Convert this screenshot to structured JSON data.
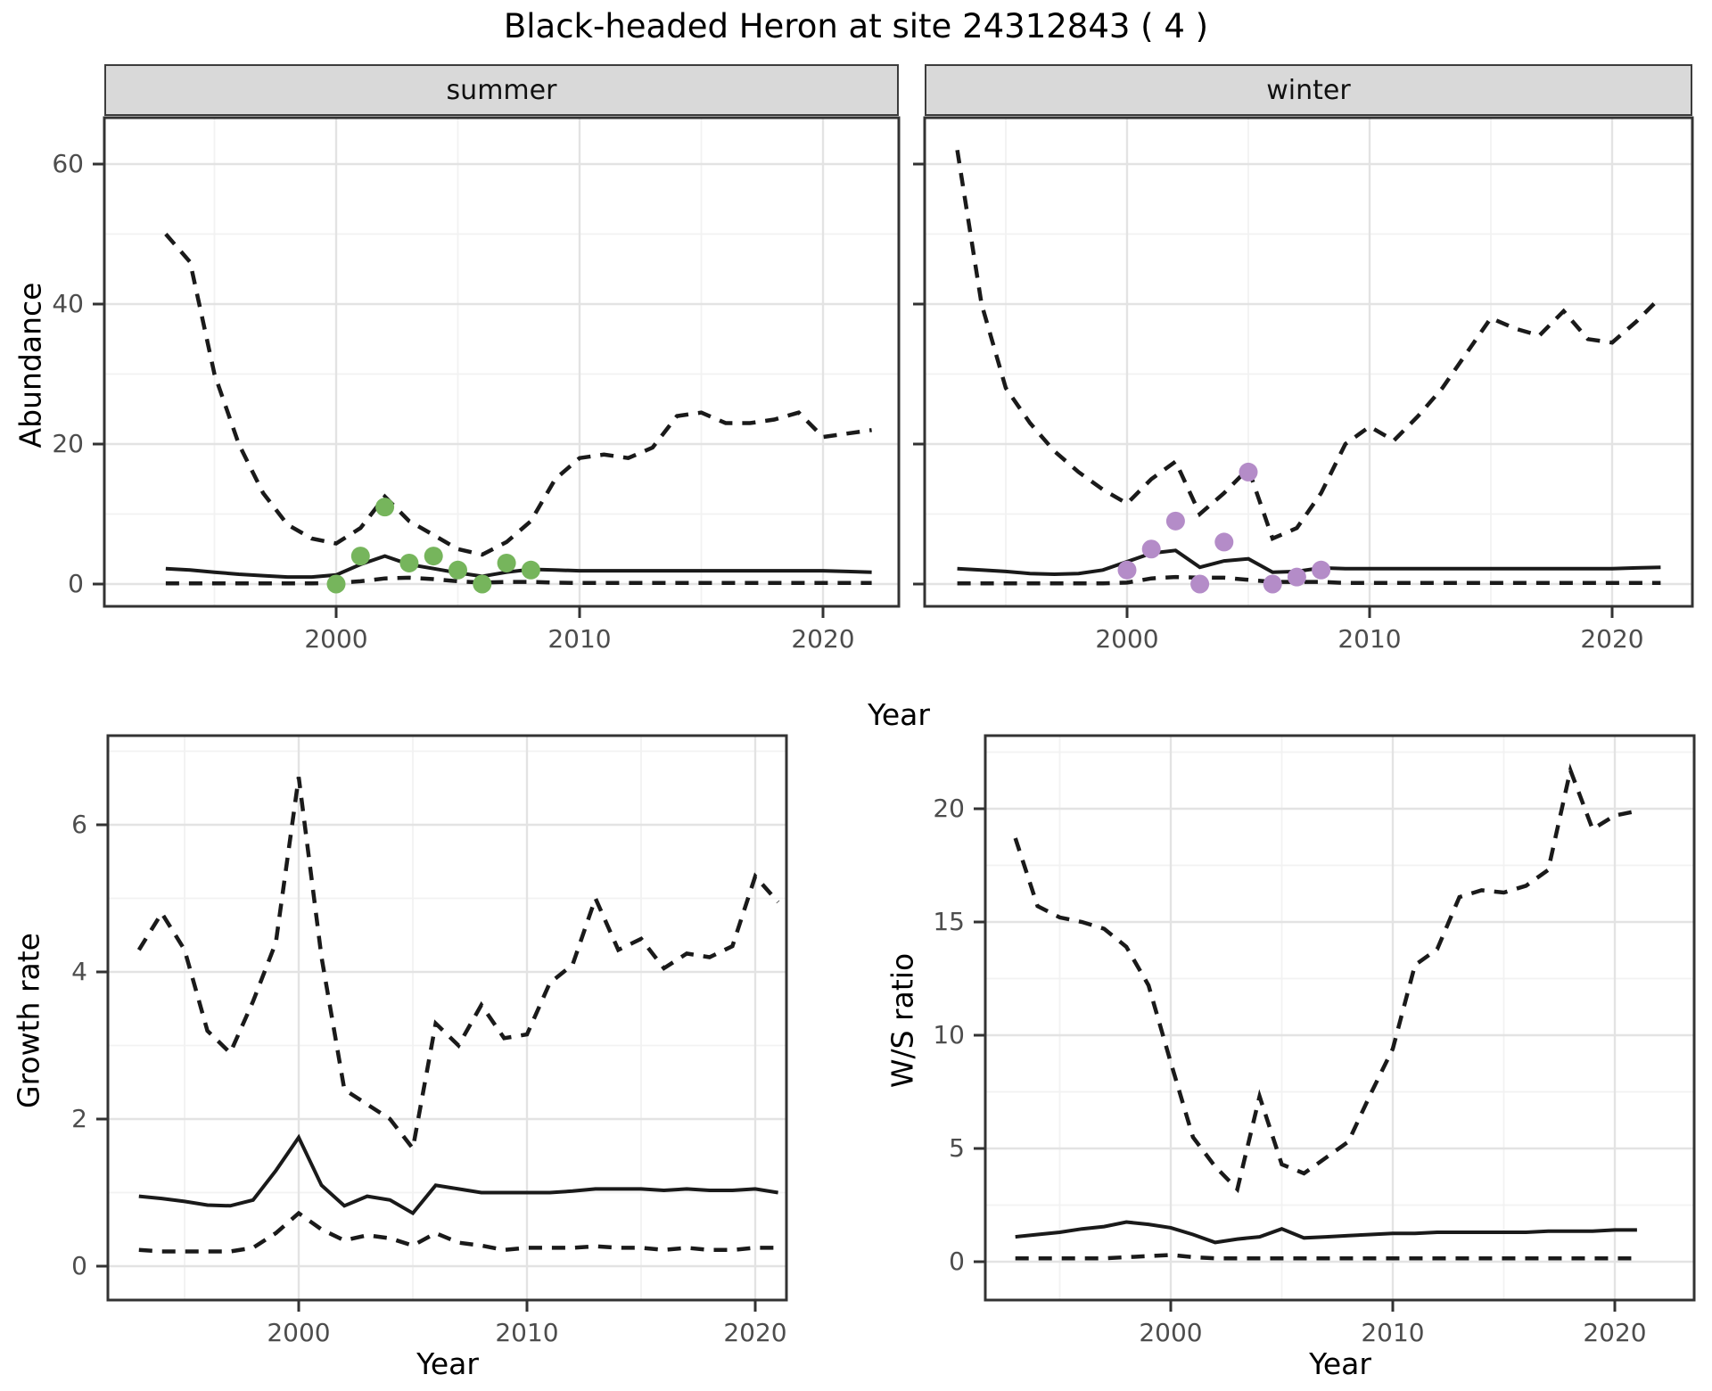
{
  "title": "Black-headed Heron at site 24312843 ( 4 )",
  "facets": {
    "summer": "summer",
    "winter": "winter"
  },
  "axes": {
    "abundance_label": "Abundance",
    "growth_label": "Growth rate",
    "ws_label": "W/S ratio",
    "year_label": "Year"
  },
  "colors": {
    "line": "#1a1a1a",
    "summer_points": "#76b55c",
    "winter_points": "#b48cc8",
    "strip_bg": "#d9d9d9",
    "grid_major": "#e3e3e3",
    "grid_minor": "#f2f2f2",
    "tick_text": "#4d4d4d"
  },
  "chart_data": [
    {
      "id": "abundance-summer",
      "type": "line",
      "facet_label": "summer",
      "xlabel": "Year",
      "ylabel": "Abundance",
      "x_ticks": [
        2000,
        2010,
        2020
      ],
      "x_minor": [
        1995,
        2005,
        2015
      ],
      "y_ticks": [
        0,
        20,
        40,
        60
      ],
      "y_minor": [
        10,
        30,
        50
      ],
      "show_y_tick_labels": true,
      "ylim": [
        0,
        66
      ],
      "years": [
        1993,
        1994,
        1995,
        1996,
        1997,
        1998,
        1999,
        2000,
        2001,
        2002,
        2003,
        2004,
        2005,
        2006,
        2007,
        2008,
        2009,
        2010,
        2011,
        2012,
        2013,
        2014,
        2015,
        2016,
        2017,
        2018,
        2019,
        2020,
        2021,
        2022
      ],
      "series": [
        {
          "name": "upper_95ci",
          "style": "dashed",
          "values": [
            50,
            46,
            30,
            20,
            13,
            8.5,
            6.5,
            5.8,
            8,
            12.5,
            9,
            7,
            5,
            4.2,
            6,
            9,
            15,
            18,
            18.5,
            18,
            19.5,
            24,
            24.5,
            23,
            23,
            23.5,
            24.5,
            21,
            21.5,
            22
          ]
        },
        {
          "name": "median",
          "style": "solid",
          "values": [
            2.2,
            2.0,
            1.7,
            1.4,
            1.2,
            1.0,
            1.0,
            1.3,
            2.8,
            4.0,
            2.8,
            2.2,
            1.6,
            1.1,
            1.7,
            2.1,
            2.0,
            1.9,
            1.9,
            1.9,
            1.9,
            1.9,
            1.9,
            1.9,
            1.9,
            1.9,
            1.9,
            1.9,
            1.8,
            1.7
          ]
        },
        {
          "name": "lower_95ci",
          "style": "dashed",
          "values": [
            0.1,
            0.1,
            0.1,
            0.1,
            0.1,
            0.1,
            0.1,
            0.15,
            0.4,
            0.8,
            0.9,
            0.7,
            0.4,
            0.2,
            0.3,
            0.3,
            0.2,
            0.15,
            0.15,
            0.15,
            0.15,
            0.15,
            0.15,
            0.15,
            0.15,
            0.15,
            0.15,
            0.15,
            0.15,
            0.15
          ]
        }
      ],
      "points": {
        "name": "observed-counts-summer",
        "color": "#76b55c",
        "years": [
          2000,
          2001,
          2002,
          2003,
          2004,
          2005,
          2006,
          2007,
          2008
        ],
        "values": [
          0,
          4,
          11,
          3,
          4,
          2,
          0,
          3,
          2
        ]
      }
    },
    {
      "id": "abundance-winter",
      "type": "line",
      "facet_label": "winter",
      "xlabel": "Year",
      "ylabel": "Abundance",
      "x_ticks": [
        2000,
        2010,
        2020
      ],
      "x_minor": [
        1995,
        2005,
        2015
      ],
      "y_ticks": [
        0,
        20,
        40,
        60
      ],
      "y_minor": [
        10,
        30,
        50
      ],
      "show_y_tick_labels": false,
      "ylim": [
        0,
        66
      ],
      "years": [
        1993,
        1994,
        1995,
        1996,
        1997,
        1998,
        1999,
        2000,
        2001,
        2002,
        2003,
        2004,
        2005,
        2006,
        2007,
        2008,
        2009,
        2010,
        2011,
        2012,
        2013,
        2014,
        2015,
        2016,
        2017,
        2018,
        2019,
        2020,
        2021,
        2022
      ],
      "series": [
        {
          "name": "upper_95ci",
          "style": "dashed",
          "values": [
            62,
            40,
            28,
            23,
            19,
            16,
            13.5,
            11.5,
            15,
            17.5,
            10,
            13,
            16.5,
            6.5,
            8,
            13,
            20,
            22.5,
            20.5,
            24,
            28,
            33,
            38,
            36.5,
            35.5,
            39,
            35,
            34.5,
            37.5,
            41
          ]
        },
        {
          "name": "median",
          "style": "solid",
          "values": [
            2.2,
            2.0,
            1.8,
            1.5,
            1.4,
            1.5,
            2.0,
            3.2,
            4.4,
            4.8,
            2.4,
            3.3,
            3.6,
            1.7,
            1.8,
            2.3,
            2.2,
            2.2,
            2.2,
            2.2,
            2.2,
            2.2,
            2.2,
            2.2,
            2.2,
            2.2,
            2.2,
            2.2,
            2.3,
            2.4
          ]
        },
        {
          "name": "lower_95ci",
          "style": "dashed",
          "values": [
            0.1,
            0.1,
            0.1,
            0.1,
            0.1,
            0.1,
            0.1,
            0.2,
            0.8,
            1.0,
            0.9,
            0.9,
            0.6,
            0.3,
            0.3,
            0.3,
            0.15,
            0.15,
            0.15,
            0.15,
            0.15,
            0.15,
            0.15,
            0.15,
            0.15,
            0.15,
            0.15,
            0.15,
            0.15,
            0.15
          ]
        }
      ],
      "points": {
        "name": "observed-counts-winter",
        "color": "#b48cc8",
        "years": [
          2000,
          2001,
          2002,
          2003,
          2004,
          2005,
          2006,
          2007,
          2008
        ],
        "values": [
          2,
          5,
          9,
          0,
          6,
          16,
          0,
          1,
          2
        ]
      }
    },
    {
      "id": "growth-rate",
      "type": "line",
      "facet_label": "",
      "xlabel": "Year",
      "ylabel": "Growth rate",
      "x_ticks": [
        2000,
        2010,
        2020
      ],
      "x_minor": [
        1995,
        2005,
        2015
      ],
      "y_ticks": [
        0,
        2,
        4,
        6
      ],
      "y_minor": [
        1,
        3,
        5,
        7
      ],
      "show_y_tick_labels": true,
      "ylim": [
        0,
        7.2
      ],
      "years": [
        1993,
        1994,
        1995,
        1996,
        1997,
        1998,
        1999,
        2000,
        2001,
        2002,
        2003,
        2004,
        2005,
        2006,
        2007,
        2008,
        2009,
        2010,
        2011,
        2012,
        2013,
        2014,
        2015,
        2016,
        2017,
        2018,
        2019,
        2020,
        2021
      ],
      "series": [
        {
          "name": "upper_95ci",
          "style": "dashed",
          "values": [
            4.3,
            4.8,
            4.3,
            3.2,
            2.9,
            3.6,
            4.4,
            6.65,
            4.2,
            2.4,
            2.2,
            2.0,
            1.6,
            3.3,
            3.0,
            3.55,
            3.1,
            3.15,
            3.85,
            4.1,
            5.0,
            4.3,
            4.45,
            4.05,
            4.25,
            4.2,
            4.35,
            5.3,
            4.95
          ]
        },
        {
          "name": "median",
          "style": "solid",
          "values": [
            0.95,
            0.92,
            0.88,
            0.83,
            0.82,
            0.9,
            1.3,
            1.75,
            1.1,
            0.82,
            0.95,
            0.9,
            0.72,
            1.1,
            1.05,
            1.0,
            1.0,
            1.0,
            1.0,
            1.02,
            1.05,
            1.05,
            1.05,
            1.03,
            1.05,
            1.03,
            1.03,
            1.05,
            1.0
          ]
        },
        {
          "name": "lower_95ci",
          "style": "dashed",
          "values": [
            0.22,
            0.2,
            0.2,
            0.2,
            0.2,
            0.25,
            0.45,
            0.72,
            0.5,
            0.35,
            0.42,
            0.38,
            0.28,
            0.45,
            0.32,
            0.28,
            0.22,
            0.25,
            0.25,
            0.25,
            0.27,
            0.25,
            0.25,
            0.22,
            0.25,
            0.22,
            0.22,
            0.25,
            0.25
          ]
        }
      ],
      "points": null
    },
    {
      "id": "ws-ratio",
      "type": "line",
      "facet_label": "",
      "xlabel": "Year",
      "ylabel": "W/S ratio",
      "x_ticks": [
        2000,
        2010,
        2020
      ],
      "x_minor": [
        1995,
        2005,
        2015
      ],
      "y_ticks": [
        0,
        5,
        10,
        15,
        20
      ],
      "y_minor": [
        2.5,
        7.5,
        12.5,
        17.5,
        22.5
      ],
      "show_y_tick_labels": true,
      "ylim": [
        0,
        23
      ],
      "years": [
        1993,
        1994,
        1995,
        1996,
        1997,
        1998,
        1999,
        2000,
        2001,
        2002,
        2003,
        2004,
        2005,
        2006,
        2007,
        2008,
        2009,
        2010,
        2011,
        2012,
        2013,
        2014,
        2015,
        2016,
        2017,
        2018,
        2019,
        2020,
        2021
      ],
      "series": [
        {
          "name": "upper_95ci",
          "style": "dashed",
          "values": [
            18.7,
            15.7,
            15.2,
            15.0,
            14.7,
            13.9,
            12.2,
            8.8,
            5.5,
            4.2,
            3.2,
            7.3,
            4.3,
            3.9,
            4.6,
            5.3,
            7.4,
            9.4,
            13.1,
            13.8,
            16.1,
            16.4,
            16.3,
            16.6,
            17.3,
            21.7,
            19.1,
            19.7,
            19.9
          ]
        },
        {
          "name": "median",
          "style": "solid",
          "values": [
            1.1,
            1.2,
            1.3,
            1.45,
            1.55,
            1.75,
            1.65,
            1.5,
            1.2,
            0.85,
            1.0,
            1.1,
            1.45,
            1.05,
            1.1,
            1.15,
            1.2,
            1.25,
            1.25,
            1.3,
            1.3,
            1.3,
            1.3,
            1.3,
            1.35,
            1.35,
            1.35,
            1.4,
            1.4
          ]
        },
        {
          "name": "lower_95ci",
          "style": "dashed",
          "values": [
            0.15,
            0.15,
            0.15,
            0.15,
            0.15,
            0.2,
            0.25,
            0.3,
            0.2,
            0.15,
            0.15,
            0.15,
            0.15,
            0.15,
            0.15,
            0.15,
            0.15,
            0.15,
            0.15,
            0.15,
            0.15,
            0.15,
            0.15,
            0.15,
            0.15,
            0.15,
            0.15,
            0.15,
            0.15
          ]
        }
      ],
      "points": null
    }
  ]
}
